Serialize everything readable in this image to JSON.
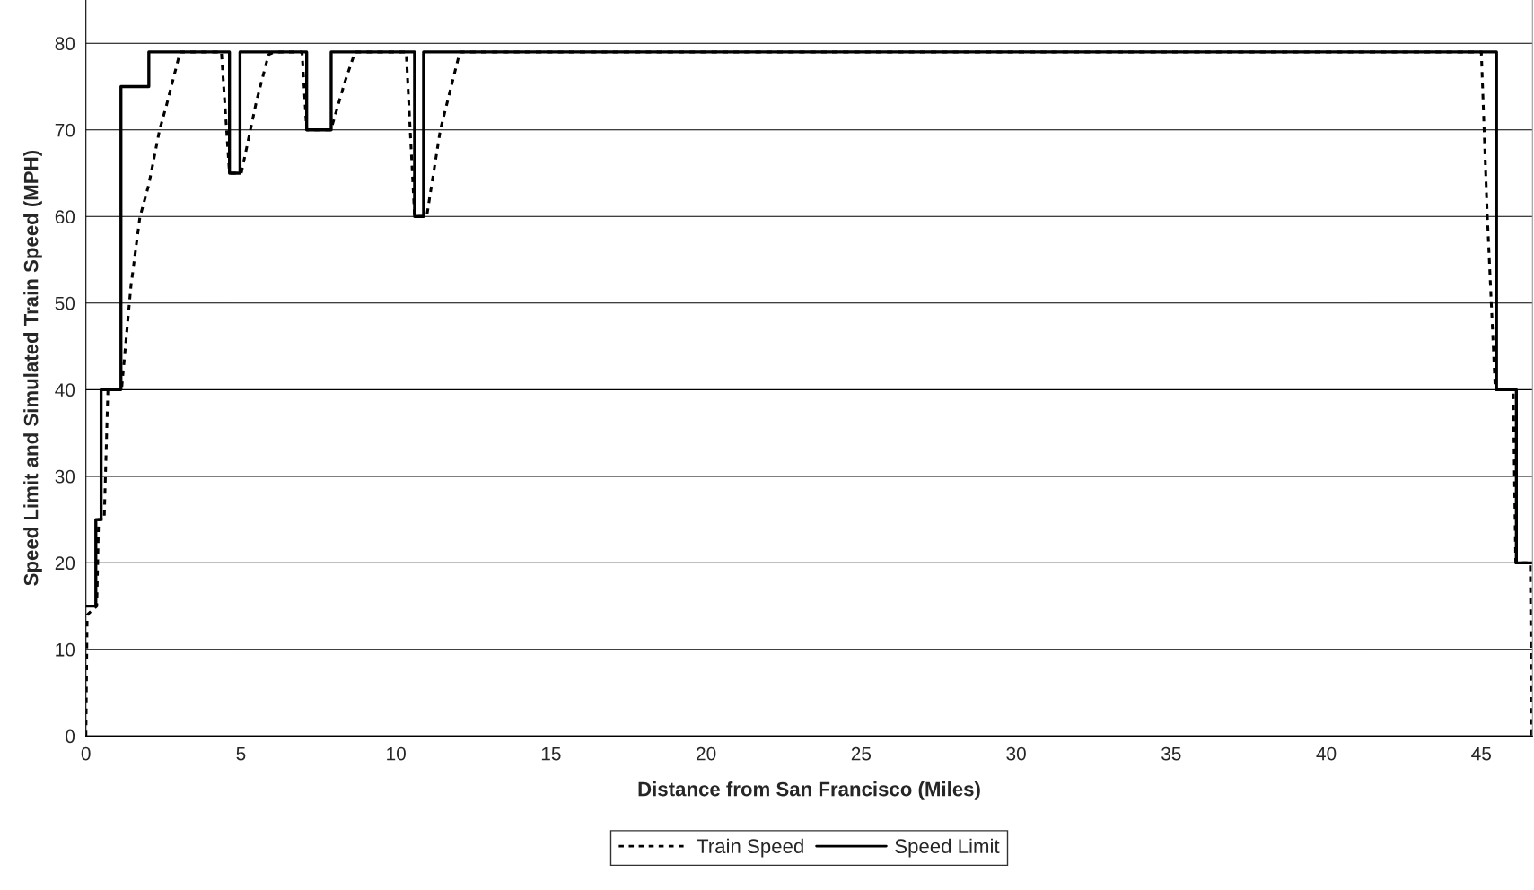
{
  "chart_data": {
    "type": "line",
    "xlabel": "Distance from San Francisco (Miles)",
    "ylabel": "Speed Limit and Simulated Train Speed (MPH)",
    "xlim": [
      0,
      46.65
    ],
    "xticks": [
      0,
      5,
      10,
      15,
      20,
      25,
      30,
      35,
      40,
      45
    ],
    "ylim": [
      0,
      85
    ],
    "yticks": [
      0,
      10,
      20,
      30,
      40,
      50,
      60,
      70,
      80
    ],
    "grid": "y",
    "legend": "bottom",
    "marker": "none",
    "series": [
      {
        "name": "Train Speed",
        "line_style": "dotted",
        "color": "#000000",
        "x": [
          0,
          0.04,
          0.35,
          0.41,
          0.59,
          0.71,
          1.15,
          1.45,
          1.74,
          2.03,
          2.37,
          2.61,
          3.04,
          4.37,
          4.63,
          5.01,
          5.5,
          5.89,
          6.1,
          6.97,
          7.12,
          7.9,
          8.34,
          8.68,
          10.33,
          10.6,
          10.99,
          11.43,
          12.06,
          45.0,
          45.19,
          45.45,
          46.03,
          46.11,
          46.58,
          46.62
        ],
        "values": [
          0,
          14,
          15,
          25,
          25,
          40,
          40,
          51.9,
          59.9,
          63.7,
          69.9,
          73,
          79,
          79,
          65,
          65,
          73.3,
          78.7,
          79,
          79,
          70,
          70,
          75.4,
          79,
          79,
          60,
          60,
          70,
          79,
          79,
          60.3,
          40,
          40,
          20,
          20,
          0
        ]
      },
      {
        "name": "Speed Limit",
        "type": "step",
        "line_style": "solid",
        "color": "#000000",
        "x": [
          0,
          0.32,
          0.49,
          1.13,
          2.03,
          4.63,
          4.97,
          7.12,
          7.91,
          10.6,
          10.89,
          45.49,
          46.13,
          46.65
        ],
        "values": [
          15,
          25,
          40,
          75,
          79,
          65,
          79,
          70,
          79,
          60,
          79,
          40,
          20,
          20
        ]
      }
    ]
  }
}
